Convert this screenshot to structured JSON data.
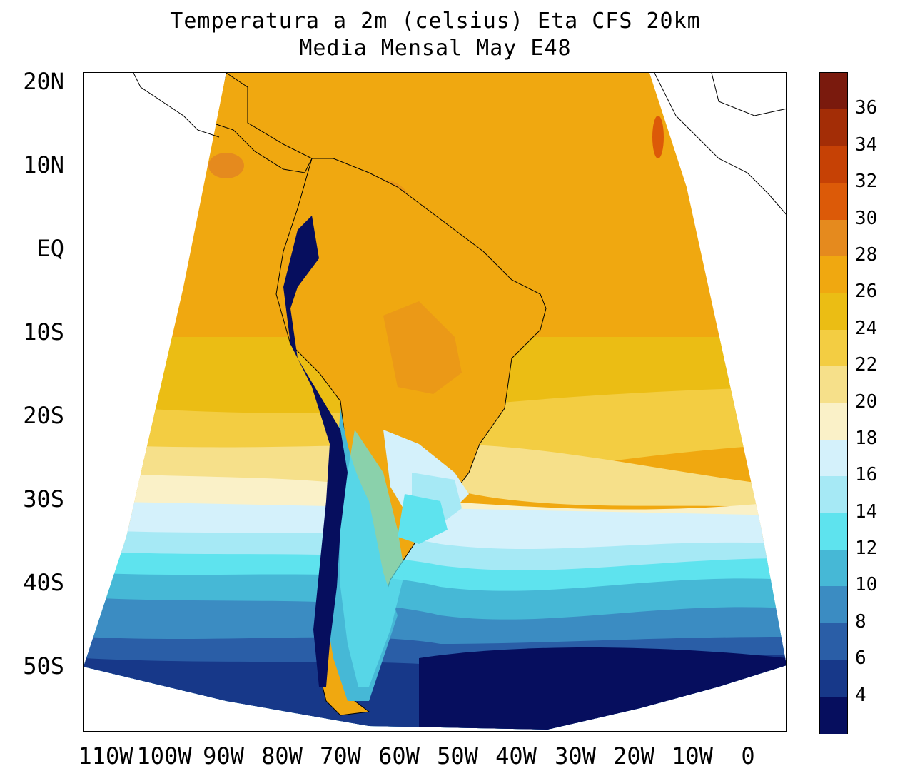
{
  "title_line1": "Temperatura a 2m (celsius) Eta CFS 20km",
  "title_line2": "Media Mensal May  E48",
  "lat_labels": [
    "20N",
    "10N",
    "EQ",
    "10S",
    "20S",
    "30S",
    "40S",
    "50S"
  ],
  "lon_labels": [
    "110W",
    "100W",
    "90W",
    "80W",
    "70W",
    "60W",
    "50W",
    "40W",
    "30W",
    "20W",
    "10W",
    "0"
  ],
  "colorbar": {
    "labels": [
      "36",
      "34",
      "32",
      "30",
      "28",
      "26",
      "24",
      "22",
      "20",
      "18",
      "16",
      "14",
      "12",
      "10",
      "8",
      "6",
      "4"
    ],
    "colors": [
      "#7a1a0d",
      "#a32d06",
      "#c64105",
      "#dc5a08",
      "#e58a1e",
      "#f0a810",
      "#ebbd14",
      "#f3cd42",
      "#f6e08a",
      "#faf1c8",
      "#d4f1fb",
      "#a6e9f5",
      "#5ee3ee",
      "#46b8d6",
      "#3b8cc2",
      "#2a5ea7",
      "#173889",
      "#060e5e"
    ]
  },
  "map": {
    "lat_range": [
      -58,
      21
    ],
    "lon_range": [
      -113,
      5
    ]
  }
}
